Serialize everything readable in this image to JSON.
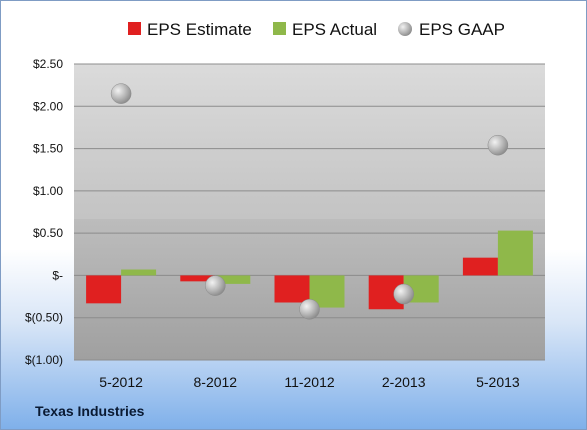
{
  "company": "Texas Industries",
  "chart_data": {
    "type": "bar",
    "categories": [
      "5-2012",
      "8-2012",
      "11-2012",
      "2-2013",
      "5-2013"
    ],
    "series": [
      {
        "name": "EPS Estimate",
        "kind": "bar",
        "color": "#e02020",
        "values": [
          -0.33,
          -0.07,
          -0.32,
          -0.4,
          0.21
        ]
      },
      {
        "name": "EPS Actual",
        "kind": "bar",
        "color": "#8fb84a",
        "values": [
          0.07,
          -0.1,
          -0.38,
          -0.32,
          0.53
        ]
      },
      {
        "name": "EPS GAAP",
        "kind": "scatter",
        "color": "#a9a9a9",
        "values": [
          2.15,
          -0.12,
          -0.4,
          -0.22,
          1.54
        ]
      }
    ],
    "yticks": [
      2.5,
      2.0,
      1.5,
      1.0,
      0.5,
      0,
      -0.5,
      -1.0
    ],
    "ytick_labels": [
      "$2.50",
      "$2.00",
      "$1.50",
      "$1.00",
      "$0.50",
      "$-",
      "$(0.50)",
      "$(1.00)"
    ],
    "ylim": [
      -1.0,
      2.5
    ],
    "grid": true,
    "legend": "top"
  }
}
